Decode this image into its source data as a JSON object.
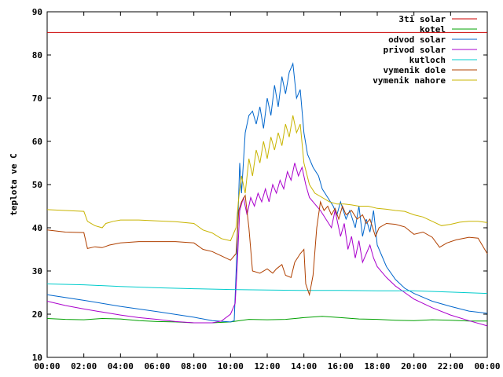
{
  "chart_data": {
    "type": "line",
    "title": "",
    "xlabel": "",
    "ylabel": "teplota ve C",
    "ylim": [
      10,
      90
    ],
    "y_ticks": [
      "10",
      "20",
      "30",
      "40",
      "50",
      "60",
      "70",
      "80",
      "90"
    ],
    "x_ticks": [
      "00:00",
      "02:00",
      "04:00",
      "06:00",
      "08:00",
      "10:00",
      "12:00",
      "14:00",
      "16:00",
      "18:00",
      "20:00",
      "22:00",
      "00:00"
    ],
    "xlim_hours": [
      0,
      24
    ],
    "grid": false,
    "legend_position": "top-right",
    "series": [
      {
        "name": "3ti solar",
        "color": "#cc0000",
        "points": [
          [
            0,
            85.2
          ],
          [
            24,
            85.2
          ]
        ]
      },
      {
        "name": "kotel",
        "color": "#00a000",
        "points": [
          [
            0,
            19.0
          ],
          [
            1,
            18.8
          ],
          [
            2,
            18.7
          ],
          [
            3,
            19.0
          ],
          [
            4,
            18.9
          ],
          [
            5,
            18.5
          ],
          [
            6,
            18.3
          ],
          [
            7,
            18.2
          ],
          [
            8,
            18.0
          ],
          [
            9,
            18.0
          ],
          [
            10,
            18.2
          ],
          [
            11,
            18.8
          ],
          [
            12,
            18.7
          ],
          [
            13,
            18.8
          ],
          [
            14,
            19.2
          ],
          [
            15,
            19.5
          ],
          [
            16,
            19.2
          ],
          [
            17,
            18.9
          ],
          [
            18,
            18.8
          ],
          [
            19,
            18.6
          ],
          [
            20,
            18.5
          ],
          [
            21,
            18.7
          ],
          [
            22,
            18.6
          ],
          [
            23,
            18.4
          ],
          [
            24,
            18.4
          ]
        ]
      },
      {
        "name": "odvod solar",
        "color": "#0066cc",
        "points": [
          [
            0,
            24.5
          ],
          [
            2,
            23.2
          ],
          [
            4,
            21.8
          ],
          [
            6,
            20.6
          ],
          [
            8,
            19.3
          ],
          [
            9,
            18.5
          ],
          [
            10,
            18.2
          ],
          [
            10.2,
            18.5
          ],
          [
            10.35,
            35
          ],
          [
            10.5,
            55
          ],
          [
            10.6,
            48
          ],
          [
            10.8,
            62
          ],
          [
            11,
            66
          ],
          [
            11.2,
            67
          ],
          [
            11.4,
            64
          ],
          [
            11.6,
            68
          ],
          [
            11.8,
            63
          ],
          [
            12,
            70
          ],
          [
            12.2,
            66
          ],
          [
            12.4,
            73
          ],
          [
            12.6,
            68
          ],
          [
            12.8,
            75
          ],
          [
            13,
            71
          ],
          [
            13.2,
            76
          ],
          [
            13.4,
            78
          ],
          [
            13.6,
            70
          ],
          [
            13.8,
            72
          ],
          [
            14,
            62
          ],
          [
            14.2,
            57
          ],
          [
            14.5,
            54
          ],
          [
            14.8,
            52
          ],
          [
            15,
            49
          ],
          [
            15.3,
            47
          ],
          [
            15.6,
            45
          ],
          [
            15.8,
            43
          ],
          [
            16,
            46
          ],
          [
            16.3,
            42
          ],
          [
            16.5,
            44
          ],
          [
            16.8,
            40
          ],
          [
            17,
            45
          ],
          [
            17.2,
            38
          ],
          [
            17.4,
            42
          ],
          [
            17.6,
            39
          ],
          [
            17.8,
            44
          ],
          [
            18,
            36
          ],
          [
            18.2,
            34
          ],
          [
            18.5,
            31
          ],
          [
            19,
            28
          ],
          [
            19.5,
            26
          ],
          [
            20,
            24.8
          ],
          [
            21,
            23
          ],
          [
            22,
            21.8
          ],
          [
            23,
            20.7
          ],
          [
            24,
            20.2
          ]
        ]
      },
      {
        "name": "privod solar",
        "color": "#aa00cc",
        "points": [
          [
            0,
            23.0
          ],
          [
            1,
            22.0
          ],
          [
            2,
            21.2
          ],
          [
            3,
            20.5
          ],
          [
            4,
            19.8
          ],
          [
            5,
            19.2
          ],
          [
            6,
            18.8
          ],
          [
            7,
            18.3
          ],
          [
            8,
            18.0
          ],
          [
            9,
            18.0
          ],
          [
            9.5,
            18.4
          ],
          [
            10,
            20
          ],
          [
            10.25,
            22.5
          ],
          [
            10.35,
            30
          ],
          [
            10.5,
            44
          ],
          [
            10.7,
            47
          ],
          [
            10.9,
            43
          ],
          [
            11.1,
            47
          ],
          [
            11.3,
            45
          ],
          [
            11.5,
            48
          ],
          [
            11.7,
            46
          ],
          [
            11.9,
            49
          ],
          [
            12.1,
            46
          ],
          [
            12.3,
            50
          ],
          [
            12.5,
            48
          ],
          [
            12.7,
            51
          ],
          [
            12.9,
            49
          ],
          [
            13.1,
            53
          ],
          [
            13.3,
            51
          ],
          [
            13.5,
            55
          ],
          [
            13.7,
            52
          ],
          [
            13.9,
            54
          ],
          [
            14.1,
            50
          ],
          [
            14.3,
            47
          ],
          [
            14.6,
            45.5
          ],
          [
            14.9,
            44
          ],
          [
            15.2,
            42
          ],
          [
            15.5,
            40
          ],
          [
            15.7,
            44
          ],
          [
            16,
            38
          ],
          [
            16.2,
            41
          ],
          [
            16.4,
            35
          ],
          [
            16.6,
            38
          ],
          [
            16.8,
            33
          ],
          [
            17,
            37
          ],
          [
            17.2,
            32
          ],
          [
            17.4,
            34
          ],
          [
            17.6,
            36
          ],
          [
            17.8,
            33
          ],
          [
            18,
            31
          ],
          [
            18.5,
            28.5
          ],
          [
            19,
            26.5
          ],
          [
            19.5,
            25
          ],
          [
            20,
            23.5
          ],
          [
            21,
            21.5
          ],
          [
            22,
            19.8
          ],
          [
            23,
            18.5
          ],
          [
            24,
            17.3
          ]
        ]
      },
      {
        "name": "kutloch",
        "color": "#00cccc",
        "points": [
          [
            0,
            27.0
          ],
          [
            2,
            26.8
          ],
          [
            4,
            26.4
          ],
          [
            6,
            26.1
          ],
          [
            8,
            25.9
          ],
          [
            10,
            25.7
          ],
          [
            12,
            25.6
          ],
          [
            14,
            25.5
          ],
          [
            16,
            25.5
          ],
          [
            18,
            25.4
          ],
          [
            20,
            25.4
          ],
          [
            22,
            25.1
          ],
          [
            24,
            24.8
          ]
        ]
      },
      {
        "name": "vymenik dole",
        "color": "#b04000",
        "points": [
          [
            0,
            39.5
          ],
          [
            1,
            39.0
          ],
          [
            2,
            38.9
          ],
          [
            2.2,
            35.2
          ],
          [
            2.6,
            35.6
          ],
          [
            3,
            35.4
          ],
          [
            3.4,
            36.0
          ],
          [
            4,
            36.5
          ],
          [
            5,
            36.8
          ],
          [
            6,
            36.8
          ],
          [
            7,
            36.8
          ],
          [
            8,
            36.5
          ],
          [
            8.5,
            35.0
          ],
          [
            9,
            34.5
          ],
          [
            9.5,
            33.5
          ],
          [
            10,
            32.5
          ],
          [
            10.3,
            34
          ],
          [
            10.45,
            44
          ],
          [
            10.6,
            46
          ],
          [
            10.8,
            47.5
          ],
          [
            11,
            40
          ],
          [
            11.2,
            30
          ],
          [
            11.6,
            29.5
          ],
          [
            12,
            30.5
          ],
          [
            12.3,
            29.5
          ],
          [
            12.5,
            30.5
          ],
          [
            12.8,
            31.5
          ],
          [
            13,
            29
          ],
          [
            13.3,
            28.5
          ],
          [
            13.5,
            32
          ],
          [
            13.8,
            34
          ],
          [
            14,
            35
          ],
          [
            14.1,
            27
          ],
          [
            14.3,
            24.5
          ],
          [
            14.5,
            29
          ],
          [
            14.7,
            40
          ],
          [
            14.9,
            46
          ],
          [
            15.1,
            44
          ],
          [
            15.3,
            45
          ],
          [
            15.5,
            43
          ],
          [
            15.7,
            44.5
          ],
          [
            15.9,
            42
          ],
          [
            16.1,
            45
          ],
          [
            16.3,
            43
          ],
          [
            16.6,
            44
          ],
          [
            16.9,
            42
          ],
          [
            17.2,
            43
          ],
          [
            17.4,
            41
          ],
          [
            17.6,
            42
          ],
          [
            17.9,
            38
          ],
          [
            18.1,
            40
          ],
          [
            18.5,
            41
          ],
          [
            19,
            40.8
          ],
          [
            19.5,
            40.2
          ],
          [
            20,
            38.5
          ],
          [
            20.5,
            39
          ],
          [
            21,
            37.8
          ],
          [
            21.4,
            35.5
          ],
          [
            21.8,
            36.5
          ],
          [
            22.3,
            37.2
          ],
          [
            23,
            37.8
          ],
          [
            23.5,
            37.6
          ],
          [
            24,
            34
          ]
        ]
      },
      {
        "name": "vymenik nahore",
        "color": "#c8b400",
        "points": [
          [
            0,
            44.2
          ],
          [
            1,
            44.0
          ],
          [
            2,
            43.8
          ],
          [
            2.2,
            41.5
          ],
          [
            2.6,
            40.5
          ],
          [
            3,
            40.0
          ],
          [
            3.2,
            41.0
          ],
          [
            3.6,
            41.5
          ],
          [
            4,
            41.8
          ],
          [
            5,
            41.8
          ],
          [
            6,
            41.6
          ],
          [
            7,
            41.4
          ],
          [
            8,
            41.0
          ],
          [
            8.5,
            39.5
          ],
          [
            9,
            38.8
          ],
          [
            9.5,
            37.5
          ],
          [
            10,
            37.0
          ],
          [
            10.3,
            40
          ],
          [
            10.45,
            47
          ],
          [
            10.6,
            52
          ],
          [
            10.8,
            48
          ],
          [
            11,
            56
          ],
          [
            11.2,
            52
          ],
          [
            11.4,
            58
          ],
          [
            11.6,
            55
          ],
          [
            11.8,
            60
          ],
          [
            12,
            56
          ],
          [
            12.2,
            61
          ],
          [
            12.4,
            58
          ],
          [
            12.6,
            62
          ],
          [
            12.8,
            59
          ],
          [
            13,
            64
          ],
          [
            13.2,
            61
          ],
          [
            13.4,
            66
          ],
          [
            13.6,
            62
          ],
          [
            13.8,
            64
          ],
          [
            14,
            55
          ],
          [
            14.3,
            50
          ],
          [
            14.6,
            48
          ],
          [
            15,
            47
          ],
          [
            15.4,
            46
          ],
          [
            15.8,
            45.5
          ],
          [
            16.2,
            45.5
          ],
          [
            16.6,
            45.3
          ],
          [
            17,
            45
          ],
          [
            17.5,
            45
          ],
          [
            18,
            44.5
          ],
          [
            18.5,
            44.3
          ],
          [
            19,
            44
          ],
          [
            19.5,
            43.8
          ],
          [
            20,
            43
          ],
          [
            20.5,
            42.5
          ],
          [
            21,
            41.5
          ],
          [
            21.5,
            40.5
          ],
          [
            22,
            40.8
          ],
          [
            22.5,
            41.3
          ],
          [
            23,
            41.5
          ],
          [
            23.5,
            41.5
          ],
          [
            24,
            41.2
          ]
        ]
      }
    ]
  }
}
